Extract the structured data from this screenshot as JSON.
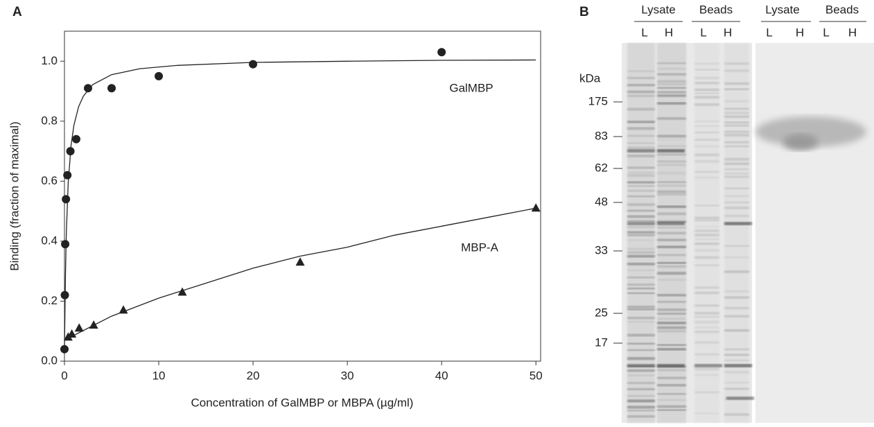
{
  "panel_a": "A",
  "panel_b": "B",
  "chart_data": {
    "type": "scatter",
    "x_label": "Concentration of GalMBP or MBPA (µg/ml)",
    "y_label": "Binding (fraction of maximal)",
    "xlim": [
      0,
      50.5
    ],
    "ylim": [
      0,
      1.1
    ],
    "xticks": [
      0,
      10,
      20,
      30,
      40,
      50
    ],
    "yticks": [
      {
        "value": 0,
        "label": "0.0"
      },
      0.2,
      0.4,
      0.6,
      0.8,
      {
        "value": 1,
        "label": "1.0"
      }
    ],
    "series": [
      {
        "name": "GalMBP",
        "marker": "circle",
        "color": "#222",
        "x": [
          0,
          0.04,
          0.08,
          0.16,
          0.31,
          0.63,
          1.25,
          2.5,
          5,
          10,
          20,
          40
        ],
        "values": [
          0.04,
          0.22,
          0.39,
          0.54,
          0.62,
          0.7,
          0.74,
          0.91,
          0.91,
          0.95,
          0.99,
          1.03
        ],
        "fit_x": [
          0,
          0.1,
          0.2,
          0.4,
          0.7,
          1,
          1.5,
          2,
          3,
          5,
          8,
          12,
          20,
          30,
          40,
          50
        ],
        "fit_values": [
          0.04,
          0.283,
          0.428,
          0.594,
          0.719,
          0.786,
          0.848,
          0.883,
          0.922,
          0.955,
          0.975,
          0.986,
          0.996,
          1.0,
          1.003,
          1.004
        ]
      },
      {
        "name": "MBP-A",
        "marker": "triangle",
        "color": "#222",
        "x": [
          0.39,
          0.78,
          1.56,
          3.1,
          6.25,
          12.5,
          25,
          50
        ],
        "values": [
          0.08,
          0.09,
          0.11,
          0.12,
          0.17,
          0.23,
          0.33,
          0.51
        ],
        "fit_x": [
          0,
          5,
          10,
          15,
          20,
          25,
          30,
          35,
          40,
          45,
          50
        ],
        "fit_values": [
          0.07,
          0.15,
          0.21,
          0.26,
          0.31,
          0.35,
          0.38,
          0.42,
          0.45,
          0.48,
          0.51
        ]
      }
    ]
  },
  "gel": {
    "groups": [
      "Lysate",
      "Beads",
      "Lysate",
      "Beads"
    ],
    "lanes": [
      "L",
      "H",
      "L",
      "H",
      "L",
      "H",
      "L",
      "H"
    ],
    "unit": "kDa",
    "markers": [
      "175",
      "83",
      "62",
      "48",
      "33",
      "25",
      "17"
    ]
  }
}
